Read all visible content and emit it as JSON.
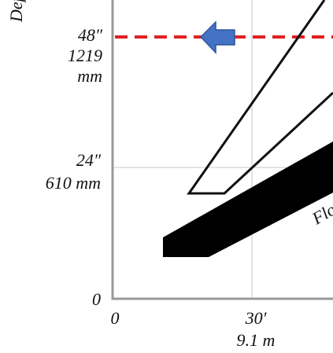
{
  "y_axis": {
    "label": "Dept",
    "ticks": [
      {
        "lines": [
          "48″",
          "1219",
          "mm"
        ]
      },
      {
        "lines": [
          "24″",
          "610 mm"
        ]
      },
      {
        "lines": [
          "0"
        ]
      }
    ]
  },
  "x_axis": {
    "ticks": [
      {
        "lines": [
          "0"
        ]
      },
      {
        "lines": [
          "30′",
          "9.1 m"
        ]
      }
    ]
  },
  "annotation": "Flo"
}
